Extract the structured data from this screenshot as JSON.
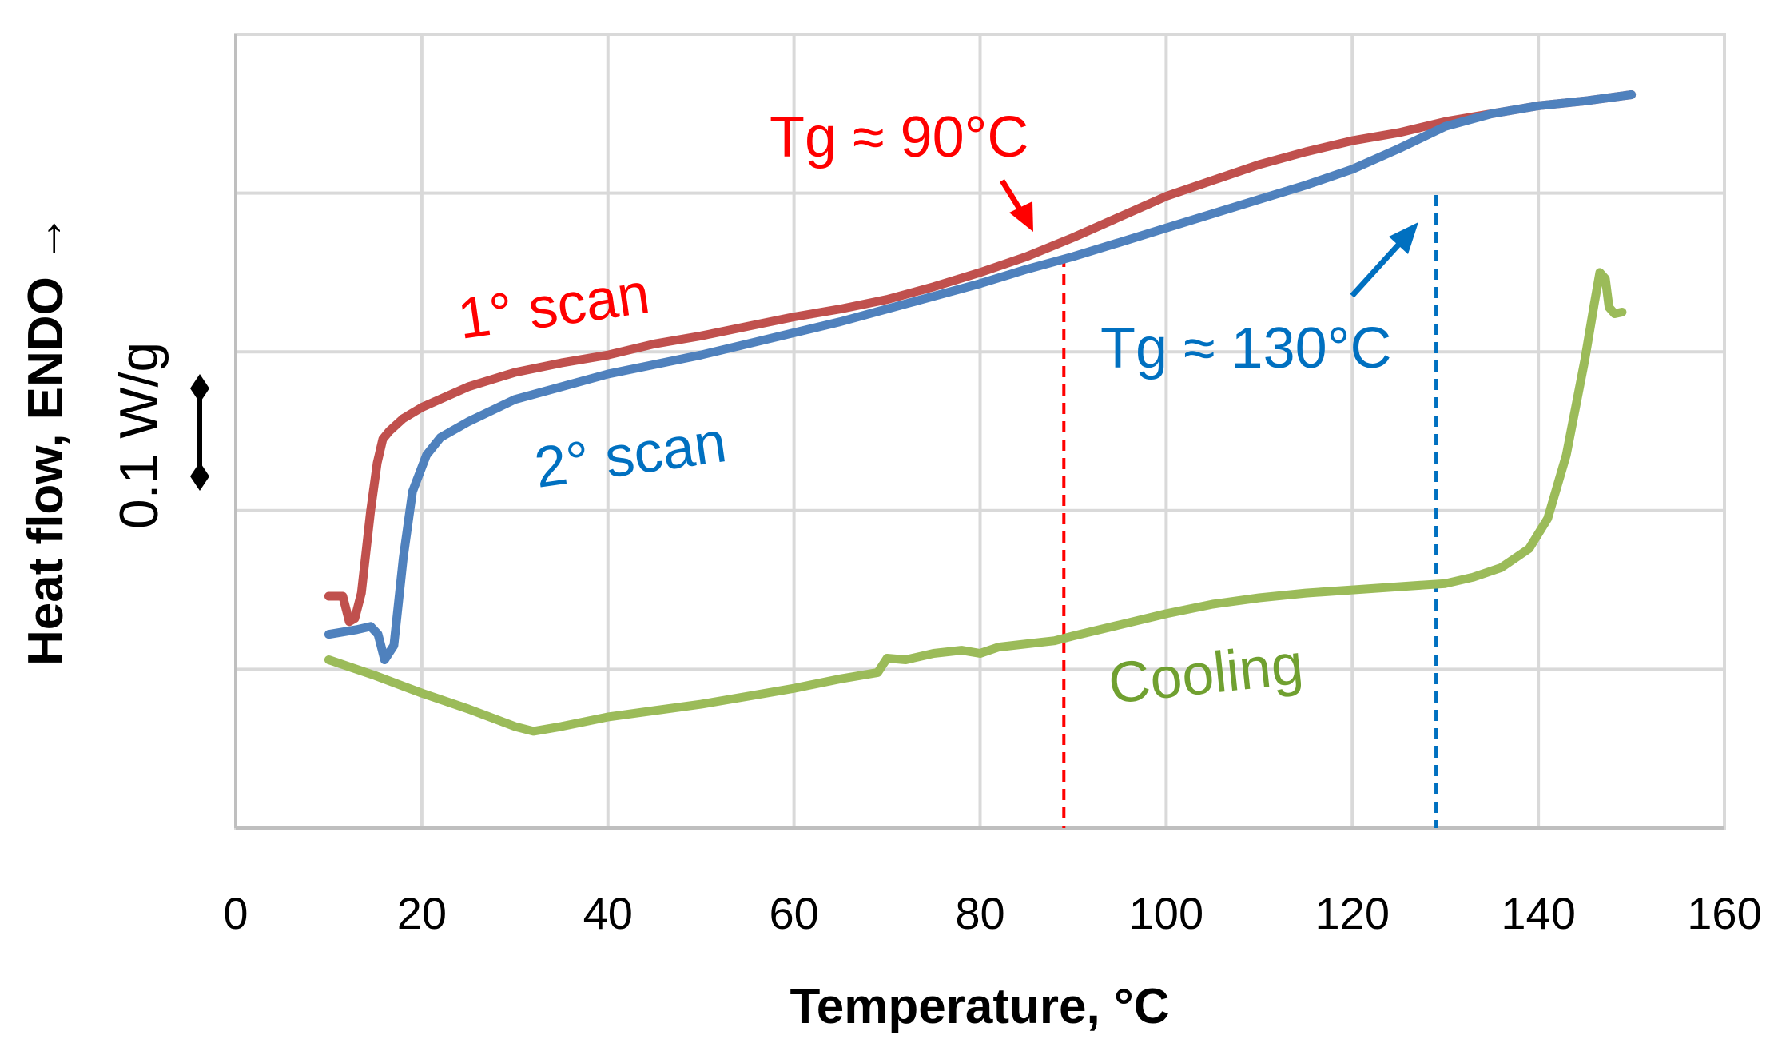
{
  "chart_data": {
    "type": "line",
    "title": "",
    "xlabel": "Temperature, °C",
    "ylabel": "Heat flow, ENDO →",
    "xlim": [
      0,
      160
    ],
    "x_ticks": [
      "0",
      "20",
      "40",
      "60",
      "80",
      "100",
      "120",
      "140",
      "160"
    ],
    "ylim": [
      0,
      5
    ],
    "y_tick_labels_shown": false,
    "grid": true,
    "legend": "none",
    "scale_bar_label": "0.1 W/g",
    "series": [
      {
        "name": "1° scan",
        "color": "#C0504D",
        "points": [
          [
            10,
            1.46
          ],
          [
            11.5,
            1.46
          ],
          [
            12.2,
            1.3
          ],
          [
            12.8,
            1.32
          ],
          [
            13.5,
            1.48
          ],
          [
            14.5,
            2.0
          ],
          [
            15.2,
            2.3
          ],
          [
            15.8,
            2.45
          ],
          [
            16.5,
            2.5
          ],
          [
            18,
            2.58
          ],
          [
            20,
            2.65
          ],
          [
            25,
            2.78
          ],
          [
            30,
            2.87
          ],
          [
            35,
            2.93
          ],
          [
            40,
            2.98
          ],
          [
            45,
            3.05
          ],
          [
            50,
            3.1
          ],
          [
            55,
            3.16
          ],
          [
            60,
            3.22
          ],
          [
            65,
            3.27
          ],
          [
            70,
            3.33
          ],
          [
            75,
            3.41
          ],
          [
            80,
            3.5
          ],
          [
            85,
            3.6
          ],
          [
            90,
            3.72
          ],
          [
            95,
            3.85
          ],
          [
            100,
            3.98
          ],
          [
            105,
            4.08
          ],
          [
            110,
            4.18
          ],
          [
            115,
            4.26
          ],
          [
            120,
            4.33
          ],
          [
            125,
            4.38
          ],
          [
            130,
            4.45
          ],
          [
            135,
            4.5
          ],
          [
            140,
            4.55
          ],
          [
            145,
            4.58
          ],
          [
            150,
            4.62
          ]
        ]
      },
      {
        "name": "2° scan",
        "color": "#4F81BD",
        "points": [
          [
            10,
            1.22
          ],
          [
            13,
            1.25
          ],
          [
            14.5,
            1.27
          ],
          [
            15.3,
            1.22
          ],
          [
            16,
            1.06
          ],
          [
            17,
            1.15
          ],
          [
            18,
            1.7
          ],
          [
            19,
            2.12
          ],
          [
            20.5,
            2.35
          ],
          [
            22,
            2.46
          ],
          [
            25,
            2.56
          ],
          [
            30,
            2.7
          ],
          [
            35,
            2.78
          ],
          [
            40,
            2.86
          ],
          [
            45,
            2.92
          ],
          [
            50,
            2.98
          ],
          [
            55,
            3.05
          ],
          [
            60,
            3.12
          ],
          [
            65,
            3.19
          ],
          [
            70,
            3.27
          ],
          [
            75,
            3.35
          ],
          [
            80,
            3.43
          ],
          [
            85,
            3.52
          ],
          [
            90,
            3.6
          ],
          [
            95,
            3.69
          ],
          [
            100,
            3.78
          ],
          [
            105,
            3.87
          ],
          [
            110,
            3.96
          ],
          [
            115,
            4.05
          ],
          [
            120,
            4.15
          ],
          [
            125,
            4.28
          ],
          [
            130,
            4.42
          ],
          [
            135,
            4.5
          ],
          [
            140,
            4.55
          ],
          [
            145,
            4.58
          ],
          [
            150,
            4.62
          ]
        ]
      },
      {
        "name": "Cooling",
        "color": "#9BBB59",
        "points": [
          [
            10,
            1.06
          ],
          [
            15,
            0.96
          ],
          [
            20,
            0.85
          ],
          [
            25,
            0.75
          ],
          [
            30,
            0.64
          ],
          [
            32,
            0.61
          ],
          [
            35,
            0.64
          ],
          [
            40,
            0.7
          ],
          [
            45,
            0.74
          ],
          [
            50,
            0.78
          ],
          [
            55,
            0.83
          ],
          [
            60,
            0.88
          ],
          [
            65,
            0.94
          ],
          [
            69,
            0.98
          ],
          [
            70,
            1.07
          ],
          [
            72,
            1.06
          ],
          [
            75,
            1.1
          ],
          [
            78,
            1.12
          ],
          [
            80,
            1.1
          ],
          [
            82,
            1.14
          ],
          [
            85,
            1.16
          ],
          [
            88,
            1.18
          ],
          [
            90,
            1.21
          ],
          [
            95,
            1.28
          ],
          [
            100,
            1.35
          ],
          [
            105,
            1.41
          ],
          [
            110,
            1.45
          ],
          [
            115,
            1.48
          ],
          [
            120,
            1.5
          ],
          [
            125,
            1.52
          ],
          [
            130,
            1.54
          ],
          [
            133,
            1.58
          ],
          [
            136,
            1.64
          ],
          [
            139,
            1.76
          ],
          [
            141,
            1.95
          ],
          [
            143,
            2.35
          ],
          [
            145,
            2.95
          ],
          [
            146,
            3.3
          ],
          [
            146.6,
            3.5
          ],
          [
            147.2,
            3.46
          ],
          [
            147.6,
            3.28
          ],
          [
            148.2,
            3.24
          ],
          [
            149,
            3.25
          ]
        ]
      }
    ],
    "reference_lines": [
      {
        "x": 89,
        "color": "#FF0000",
        "style": "dashed"
      },
      {
        "x": 129,
        "color": "#0070C0",
        "style": "dashed"
      }
    ],
    "annotations": [
      {
        "text": "Tg ≈ 90°C",
        "color": "#FF0000"
      },
      {
        "text": "Tg ≈ 130°C",
        "color": "#0070C0"
      },
      {
        "text": "1° scan",
        "color": "#FF0000"
      },
      {
        "text": "2° scan",
        "color": "#0070C0"
      },
      {
        "text": "Cooling",
        "color": "#70A030"
      }
    ]
  }
}
